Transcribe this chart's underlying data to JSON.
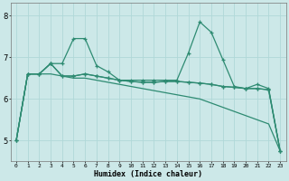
{
  "title": "",
  "xlabel": "Humidex (Indice chaleur)",
  "x": [
    0,
    1,
    2,
    3,
    4,
    5,
    6,
    7,
    8,
    9,
    10,
    11,
    12,
    13,
    14,
    15,
    16,
    17,
    18,
    19,
    20,
    21,
    22,
    23
  ],
  "line1": [
    5.0,
    6.6,
    6.6,
    6.85,
    6.85,
    7.45,
    7.45,
    6.8,
    6.65,
    6.45,
    6.45,
    6.45,
    6.45,
    6.45,
    6.45,
    7.1,
    7.85,
    7.6,
    6.95,
    6.3,
    6.25,
    6.35,
    6.25,
    4.75
  ],
  "line2": [
    5.0,
    6.6,
    6.6,
    6.85,
    6.55,
    6.55,
    6.6,
    6.55,
    6.5,
    6.45,
    6.42,
    6.4,
    6.4,
    6.42,
    6.42,
    6.4,
    6.38,
    6.35,
    6.3,
    6.28,
    6.25,
    6.25,
    6.22,
    4.75
  ],
  "line3": [
    5.0,
    6.6,
    6.6,
    6.85,
    6.55,
    6.55,
    6.6,
    6.55,
    6.5,
    6.45,
    6.42,
    6.4,
    6.4,
    6.42,
    6.42,
    6.4,
    6.38,
    6.35,
    6.3,
    6.28,
    6.25,
    6.25,
    6.22,
    4.75
  ],
  "line4": [
    5.0,
    6.6,
    6.6,
    6.6,
    6.55,
    6.5,
    6.5,
    6.45,
    6.4,
    6.35,
    6.3,
    6.25,
    6.2,
    6.15,
    6.1,
    6.05,
    6.0,
    5.9,
    5.8,
    5.7,
    5.6,
    5.5,
    5.4,
    4.75
  ],
  "color": "#2e8b72",
  "bg_color": "#cce8e8",
  "grid_color": "#b0d8d8",
  "ylim": [
    4.5,
    8.3
  ],
  "xlim": [
    -0.5,
    23.5
  ],
  "yticks": [
    5,
    6,
    7,
    8
  ],
  "xticks": [
    0,
    1,
    2,
    3,
    4,
    5,
    6,
    7,
    8,
    9,
    10,
    11,
    12,
    13,
    14,
    15,
    16,
    17,
    18,
    19,
    20,
    21,
    22,
    23
  ]
}
